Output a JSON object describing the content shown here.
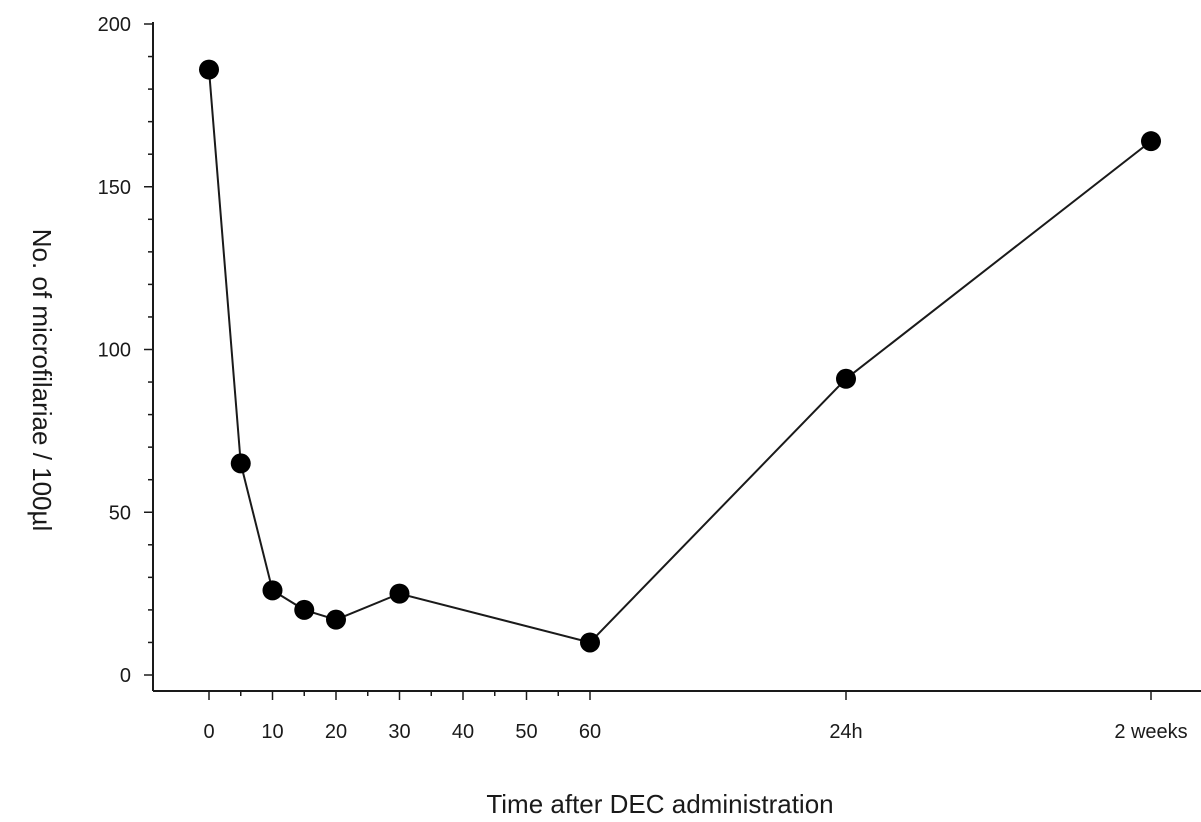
{
  "chart_data": {
    "type": "line",
    "title": "",
    "xlabel": "Time after DEC administration",
    "ylabel": "No. of microfilariae / 100µl",
    "ylim": [
      0,
      200
    ],
    "yticks": [
      "0",
      "50",
      "100",
      "150",
      "200"
    ],
    "xticks": [
      "0",
      "10",
      "20",
      "30",
      "40",
      "50",
      "60",
      "24h",
      "2 weeks"
    ],
    "grid": false,
    "legend": "none",
    "marker_color": "#000000",
    "line_color": "#1a1a1a",
    "series": [
      {
        "x": [
          "0",
          "5",
          "10",
          "15",
          "20",
          "30",
          "60",
          "24h",
          "2 weeks"
        ],
        "values": [
          186,
          65,
          26,
          20,
          17,
          25,
          10,
          91,
          164
        ]
      }
    ]
  }
}
